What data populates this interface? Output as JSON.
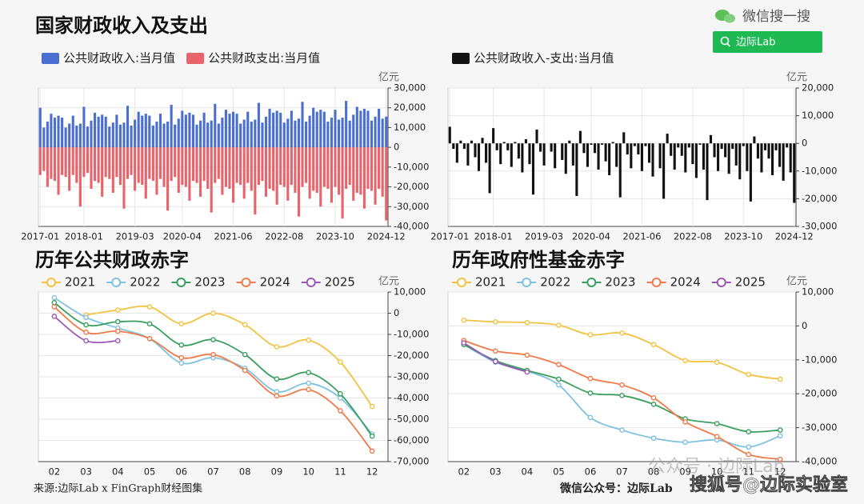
{
  "header": {
    "search_brand": "微信搜一搜",
    "search_query": "边际Lab"
  },
  "footer": {
    "source": "来源:边际Lab x FinGraph财经图集",
    "account": "微信公众号：边际Lab",
    "watermark": "公众号 · 边际Lab",
    "watermark2": "搜狐号@边际实验室"
  },
  "chart_data": [
    {
      "type": "bar",
      "title": "国家财政收入及支出",
      "y_unit": "亿元",
      "categories": [
        "2017-01",
        null,
        null,
        null,
        null,
        null,
        null,
        null,
        null,
        null,
        null,
        null,
        "2018-01",
        null,
        null,
        null,
        null,
        null,
        null,
        null,
        null,
        null,
        null,
        null,
        null,
        null,
        "2019-03",
        null,
        null,
        null,
        null,
        null,
        null,
        null,
        null,
        null,
        null,
        null,
        null,
        "2020-04",
        null,
        null,
        null,
        null,
        null,
        null,
        null,
        null,
        null,
        null,
        null,
        null,
        null,
        "2021-06",
        null,
        null,
        null,
        null,
        null,
        null,
        null,
        null,
        null,
        null,
        null,
        null,
        null,
        "2022-08",
        null,
        null,
        null,
        null,
        null,
        null,
        null,
        null,
        null,
        null,
        null,
        null,
        null,
        "2023-10",
        null,
        null,
        null,
        null,
        null,
        null,
        null,
        null,
        null,
        null,
        null,
        null,
        null,
        "2024-12"
      ],
      "series": [
        {
          "name": "公共财政收入:当月值",
          "color": "#4a6fd0",
          "values": [
            20000,
            10000,
            13000,
            17000,
            15000,
            16000,
            15000,
            10000,
            12000,
            16000,
            11000,
            12000,
            20500,
            10500,
            13500,
            17500,
            15500,
            16500,
            15500,
            10500,
            12500,
            16500,
            11500,
            12500,
            21000,
            11000,
            14000,
            18000,
            16000,
            17000,
            16000,
            11000,
            13000,
            17000,
            12000,
            13000,
            21500,
            11500,
            14500,
            18500,
            16500,
            17500,
            16500,
            11500,
            13500,
            17500,
            12500,
            13500,
            22000,
            12000,
            15000,
            19000,
            17000,
            18000,
            17000,
            12000,
            14000,
            18000,
            13000,
            14000,
            22500,
            12500,
            15500,
            19500,
            17500,
            18500,
            17500,
            12500,
            14500,
            18500,
            13500,
            14500,
            23000,
            13000,
            16000,
            20000,
            18000,
            19000,
            18000,
            13000,
            15000,
            19000,
            14000,
            15000,
            23500,
            13500,
            16500,
            20500,
            18500,
            19500,
            18500,
            13500,
            15500,
            19500,
            14500,
            15500
          ]
        },
        {
          "name": "公共财政支出:当月值",
          "color": "#e8636a",
          "values": [
            -14000,
            -12000,
            -20000,
            -16000,
            -17000,
            -24000,
            -14000,
            -15000,
            -22000,
            -14000,
            -18000,
            -30000,
            -15000,
            -13000,
            -21000,
            -17000,
            -18000,
            -25000,
            -15000,
            -16000,
            -23000,
            -15000,
            -19000,
            -31000,
            -16000,
            -14000,
            -22000,
            -18000,
            -19000,
            -26000,
            -16000,
            -17000,
            -24000,
            -16000,
            -20000,
            -32000,
            -17000,
            -15000,
            -23000,
            -19000,
            -20000,
            -27000,
            -17000,
            -18000,
            -25000,
            -17000,
            -21000,
            -33000,
            -18000,
            -16000,
            -24000,
            -20000,
            -21000,
            -28000,
            -18000,
            -19000,
            -26000,
            -18000,
            -22000,
            -34000,
            -19000,
            -17000,
            -25000,
            -21000,
            -22000,
            -29000,
            -19000,
            -20000,
            -27000,
            -19000,
            -23000,
            -35000,
            -20000,
            -18000,
            -26000,
            -22000,
            -23000,
            -30000,
            -20000,
            -21000,
            -28000,
            -20000,
            -24000,
            -36000,
            -21000,
            -19000,
            -27000,
            -23000,
            -24000,
            -31000,
            -21000,
            -22000,
            -29000,
            -21000,
            -25000,
            -37000
          ]
        }
      ],
      "ylim": [
        -40000,
        30000
      ],
      "yticks": [
        {
          "value": 30000,
          "label": "30,000"
        },
        {
          "value": 20000,
          "label": "20,000"
        },
        {
          "value": 10000,
          "label": "10,000"
        },
        0,
        {
          "value": -10000,
          "label": "-10,000"
        },
        {
          "value": -20000,
          "label": "-20,000"
        },
        {
          "value": -30000,
          "label": "-30,000"
        },
        {
          "value": -40000,
          "label": "-40,000"
        }
      ],
      "grid": true
    },
    {
      "type": "bar",
      "y_unit": "亿元",
      "categories": [
        "2017-01",
        null,
        null,
        null,
        null,
        null,
        null,
        null,
        null,
        null,
        null,
        null,
        "2018-01",
        null,
        null,
        null,
        null,
        null,
        null,
        null,
        null,
        null,
        null,
        null,
        null,
        null,
        "2019-03",
        null,
        null,
        null,
        null,
        null,
        null,
        null,
        null,
        null,
        null,
        null,
        null,
        "2020-04",
        null,
        null,
        null,
        null,
        null,
        null,
        null,
        null,
        null,
        null,
        null,
        null,
        null,
        "2021-06",
        null,
        null,
        null,
        null,
        null,
        null,
        null,
        null,
        null,
        null,
        null,
        null,
        null,
        "2022-08",
        null,
        null,
        null,
        null,
        null,
        null,
        null,
        null,
        null,
        null,
        null,
        null,
        null,
        "2023-10",
        null,
        null,
        null,
        null,
        null,
        null,
        null,
        null,
        null,
        null,
        null,
        null,
        null,
        "2024-12"
      ],
      "series": [
        {
          "name": "公共财政收入-支出:当月值",
          "color": "#111111",
          "values": [
            6000,
            -2000,
            -7000,
            1000,
            -2000,
            -8000,
            1000,
            -5000,
            -10000,
            2000,
            -7000,
            -18000,
            5500,
            -2500,
            -7500,
            500,
            -2500,
            -8500,
            500,
            -5500,
            -10500,
            1500,
            -7500,
            -18500,
            5000,
            -3000,
            -8000,
            0,
            -3000,
            -9000,
            0,
            -6000,
            -11000,
            1000,
            -8000,
            -19000,
            4500,
            -3500,
            -8500,
            -500,
            -3500,
            -9500,
            -500,
            -6500,
            -11500,
            500,
            -8500,
            -19500,
            4000,
            -4000,
            -9000,
            -1000,
            -4000,
            -10000,
            -1000,
            -7000,
            -12000,
            0,
            -9000,
            -20000,
            3500,
            -4500,
            -9500,
            -1500,
            -4500,
            -10500,
            -1500,
            -7500,
            -12500,
            -500,
            -9500,
            -20500,
            3000,
            -5000,
            -10000,
            -2000,
            -5000,
            -11000,
            -2000,
            -8000,
            -13000,
            -1000,
            -10000,
            -21000,
            2500,
            -5500,
            -10500,
            -2500,
            -5500,
            -11500,
            -2500,
            -8500,
            -13500,
            -1500,
            -10500,
            -21500
          ]
        }
      ],
      "ylim": [
        -30000,
        20000
      ],
      "yticks": [
        {
          "value": 20000,
          "label": "20,000"
        },
        {
          "value": 10000,
          "label": "10,000"
        },
        0,
        {
          "value": -10000,
          "label": "-10,000"
        },
        {
          "value": -20000,
          "label": "-20,000"
        },
        {
          "value": -30000,
          "label": "-30,000"
        }
      ],
      "grid": true
    },
    {
      "type": "line",
      "title": "历年公共财政赤字",
      "y_unit": "亿元",
      "categories": [
        "02",
        "03",
        "04",
        "05",
        "06",
        "07",
        "08",
        "09",
        "10",
        "11",
        "12"
      ],
      "series": [
        {
          "name": "2021",
          "color": "#f2c240",
          "values": [
            null,
            -800,
            1500,
            3000,
            -5000,
            0,
            -5400,
            -15800,
            -12700,
            -23000,
            -44000
          ]
        },
        {
          "name": "2022",
          "color": "#7fc1e0",
          "values": [
            7300,
            -2000,
            -7000,
            -12000,
            -23500,
            -21000,
            -26000,
            -37000,
            -33000,
            -40000,
            -57000
          ]
        },
        {
          "name": "2023",
          "color": "#3a9e5e",
          "values": [
            5000,
            -5500,
            -4000,
            -5000,
            -15000,
            -12500,
            -19500,
            -31000,
            -28000,
            -38000,
            -58000
          ]
        },
        {
          "name": "2024",
          "color": "#f07a4a",
          "values": [
            3000,
            -9000,
            -8500,
            -12000,
            -21000,
            -19500,
            -27000,
            -39000,
            -36000,
            -46000,
            -65000
          ]
        },
        {
          "name": "2025",
          "color": "#9b59b6",
          "values": [
            -1500,
            -13000,
            -13000,
            null,
            null,
            null,
            null,
            null,
            null,
            null,
            null
          ]
        }
      ],
      "ylim": [
        -70000,
        10000
      ],
      "yticks": [
        {
          "value": 10000,
          "label": "10,000"
        },
        0,
        {
          "value": -10000,
          "label": "-10,000"
        },
        {
          "value": -20000,
          "label": "-20,000"
        },
        {
          "value": -30000,
          "label": "-30,000"
        },
        {
          "value": -40000,
          "label": "-40,000"
        },
        {
          "value": -50000,
          "label": "-50,000"
        },
        {
          "value": -60000,
          "label": "-60,000"
        },
        {
          "value": -70000,
          "label": "-70,000"
        }
      ],
      "grid": true
    },
    {
      "type": "line",
      "title": "历年政府性基金赤字",
      "y_unit": "亿元",
      "categories": [
        "02",
        "03",
        "04",
        "05",
        "06",
        "07",
        "08",
        "09",
        "10",
        "11",
        "12"
      ],
      "series": [
        {
          "name": "2021",
          "color": "#f2c240",
          "values": [
            1700,
            1200,
            1000,
            200,
            -2600,
            -2100,
            -5500,
            -10200,
            -10700,
            -14300,
            -15700
          ]
        },
        {
          "name": "2022",
          "color": "#7fc1e0",
          "values": [
            -5500,
            -10700,
            -13300,
            -17400,
            -27000,
            -30700,
            -33100,
            -34300,
            -33600,
            -35700,
            -32400
          ]
        },
        {
          "name": "2023",
          "color": "#3a9e5e",
          "values": [
            -5500,
            -10200,
            -13100,
            -15700,
            -19800,
            -20500,
            -23100,
            -27400,
            -28800,
            -31200,
            -30700
          ]
        },
        {
          "name": "2024",
          "color": "#f07a4a",
          "values": [
            -4300,
            -7400,
            -8600,
            -11400,
            -15500,
            -17400,
            -21200,
            -28300,
            -32600,
            -37900,
            -39300
          ]
        },
        {
          "name": "2025",
          "color": "#9b59b6",
          "values": [
            -5000,
            -10500,
            -13600,
            null,
            null,
            null,
            null,
            null,
            null,
            null,
            null
          ]
        }
      ],
      "ylim": [
        -40000,
        10000
      ],
      "yticks": [
        {
          "value": 10000,
          "label": "10,000"
        },
        0,
        {
          "value": -10000,
          "label": "-10,000"
        },
        {
          "value": -20000,
          "label": "-20,000"
        },
        {
          "value": -30000,
          "label": "-30,000"
        },
        {
          "value": -40000,
          "label": "-40,000"
        }
      ],
      "grid": true
    }
  ]
}
